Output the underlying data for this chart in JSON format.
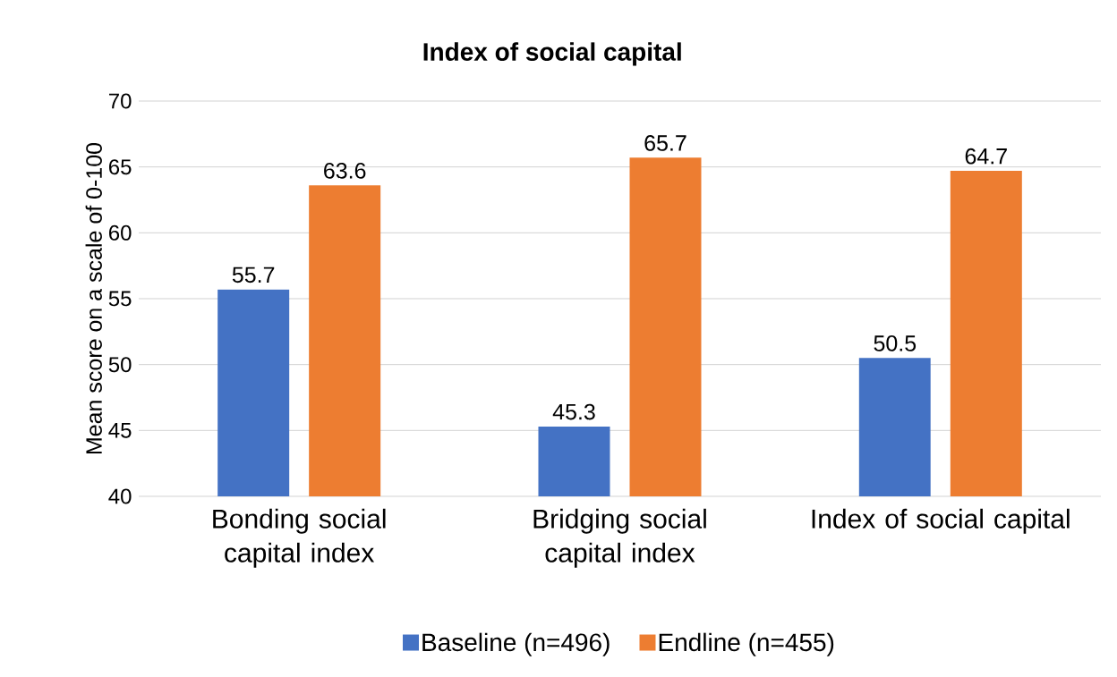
{
  "chart_data": {
    "type": "bar",
    "title": "Index of social capital",
    "ylabel": "Mean score on a scale of 0-100",
    "categories": [
      "Bonding social capital index",
      "Bridging social capital index",
      "Index of social capital"
    ],
    "series": [
      {
        "name": "Baseline (n=496)",
        "color": "#4472c4",
        "values": [
          55.7,
          45.3,
          50.5
        ]
      },
      {
        "name": "Endline (n=455)",
        "color": "#ed7d31",
        "values": [
          63.6,
          65.7,
          64.7
        ]
      }
    ],
    "ylim": [
      40,
      70
    ],
    "yticks": [
      40,
      45,
      50,
      55,
      60,
      65,
      70
    ],
    "grid": "y",
    "legend": "bottom",
    "data_labels": true
  }
}
